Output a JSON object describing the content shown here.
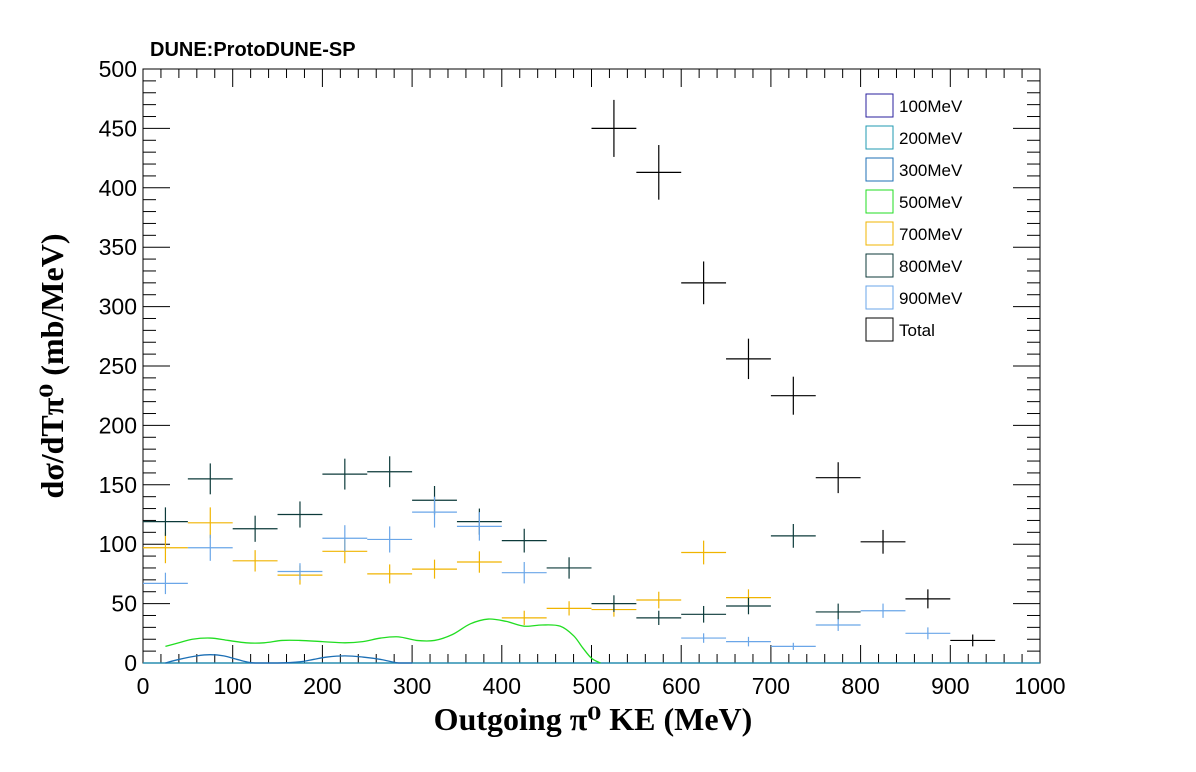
{
  "chart_data": {
    "type": "scatter",
    "title": "DUNE:ProtoDUNE-SP",
    "xlabel": "Outgoing  π⁰ KE (MeV)",
    "ylabel": "dσ/dTπ⁰ (mb/MeV)",
    "xlim": [
      0,
      1000
    ],
    "ylim": [
      0,
      500
    ],
    "x_ticks": [
      "0",
      "100",
      "200",
      "300",
      "400",
      "500",
      "600",
      "700",
      "800",
      "900",
      "1000"
    ],
    "y_ticks": [
      "0",
      "50",
      "100",
      "150",
      "200",
      "250",
      "300",
      "350",
      "400",
      "450",
      "500"
    ],
    "grid": false,
    "legend_position": "top-right",
    "series": [
      {
        "name": "100MeV",
        "color": "#2a1f9e",
        "style": "curve",
        "points": [
          [
            0,
            0
          ],
          [
            1000,
            0
          ]
        ]
      },
      {
        "name": "200MeV",
        "color": "#1f9ab0",
        "style": "curve",
        "points": [
          [
            0,
            0
          ],
          [
            1000,
            0
          ]
        ]
      },
      {
        "name": "300MeV",
        "color": "#1c6fb5",
        "style": "curve",
        "points": [
          [
            25,
            0
          ],
          [
            40,
            3
          ],
          [
            60,
            6
          ],
          [
            75,
            7
          ],
          [
            90,
            6
          ],
          [
            105,
            3
          ],
          [
            115,
            1
          ],
          [
            125,
            0
          ],
          [
            150,
            0
          ],
          [
            175,
            1
          ],
          [
            190,
            3
          ],
          [
            205,
            5
          ],
          [
            225,
            6
          ],
          [
            245,
            5
          ],
          [
            265,
            3
          ],
          [
            285,
            0
          ],
          [
            300,
            0
          ]
        ]
      },
      {
        "name": "500MeV",
        "color": "#22dd22",
        "style": "curve",
        "points": [
          [
            25,
            14
          ],
          [
            40,
            17
          ],
          [
            55,
            20
          ],
          [
            75,
            21
          ],
          [
            95,
            19
          ],
          [
            115,
            17
          ],
          [
            135,
            17
          ],
          [
            155,
            19
          ],
          [
            175,
            19
          ],
          [
            200,
            18
          ],
          [
            225,
            17
          ],
          [
            245,
            18
          ],
          [
            265,
            21
          ],
          [
            285,
            22
          ],
          [
            305,
            19
          ],
          [
            325,
            19
          ],
          [
            345,
            24
          ],
          [
            365,
            33
          ],
          [
            385,
            37
          ],
          [
            405,
            35
          ],
          [
            425,
            31
          ],
          [
            445,
            32
          ],
          [
            465,
            31
          ],
          [
            480,
            23
          ],
          [
            490,
            13
          ],
          [
            500,
            4
          ],
          [
            510,
            0
          ]
        ]
      },
      {
        "name": "700MeV",
        "color": "#f0b400",
        "style": "points",
        "points": [
          [
            25,
            97
          ],
          [
            75,
            118
          ],
          [
            125,
            86
          ],
          [
            175,
            74
          ],
          [
            225,
            94
          ],
          [
            275,
            75
          ],
          [
            325,
            79
          ],
          [
            375,
            85
          ],
          [
            425,
            38
          ],
          [
            475,
            46
          ],
          [
            525,
            45
          ],
          [
            575,
            53
          ],
          [
            625,
            93
          ],
          [
            675,
            55
          ]
        ],
        "errors": [
          13,
          13,
          9,
          8,
          10,
          8,
          8,
          9,
          6,
          6,
          6,
          7,
          10,
          7
        ]
      },
      {
        "name": "800MeV",
        "color": "#0c3a3a",
        "style": "points",
        "points": [
          [
            25,
            119
          ],
          [
            75,
            155
          ],
          [
            125,
            113
          ],
          [
            175,
            125
          ],
          [
            225,
            159
          ],
          [
            275,
            161
          ],
          [
            325,
            137
          ],
          [
            375,
            119
          ],
          [
            425,
            103
          ],
          [
            475,
            80
          ],
          [
            525,
            50
          ],
          [
            575,
            38
          ],
          [
            625,
            41
          ],
          [
            675,
            48
          ],
          [
            725,
            107
          ],
          [
            775,
            43
          ]
        ],
        "errors": [
          12,
          13,
          11,
          11,
          13,
          13,
          12,
          11,
          10,
          9,
          7,
          6,
          7,
          7,
          10,
          7
        ]
      },
      {
        "name": "900MeV",
        "color": "#6aa6e8",
        "style": "points",
        "points": [
          [
            25,
            67
          ],
          [
            75,
            97
          ],
          [
            175,
            77
          ],
          [
            225,
            105
          ],
          [
            275,
            104
          ],
          [
            325,
            127
          ],
          [
            375,
            115
          ],
          [
            425,
            76
          ],
          [
            625,
            21
          ],
          [
            675,
            18
          ],
          [
            725,
            14
          ],
          [
            775,
            32
          ],
          [
            825,
            44
          ],
          [
            875,
            25
          ]
        ],
        "errors": [
          9,
          11,
          7,
          11,
          11,
          13,
          12,
          9,
          4,
          4,
          3,
          5,
          6,
          5
        ]
      },
      {
        "name": "Total",
        "color": "#000000",
        "style": "points",
        "points": [
          [
            525,
            450
          ],
          [
            575,
            413
          ],
          [
            625,
            320
          ],
          [
            675,
            256
          ],
          [
            725,
            225
          ],
          [
            775,
            156
          ],
          [
            825,
            102
          ],
          [
            875,
            54
          ],
          [
            925,
            19
          ]
        ],
        "errors": [
          24,
          23,
          18,
          17,
          16,
          13,
          10,
          8,
          5
        ]
      }
    ]
  }
}
